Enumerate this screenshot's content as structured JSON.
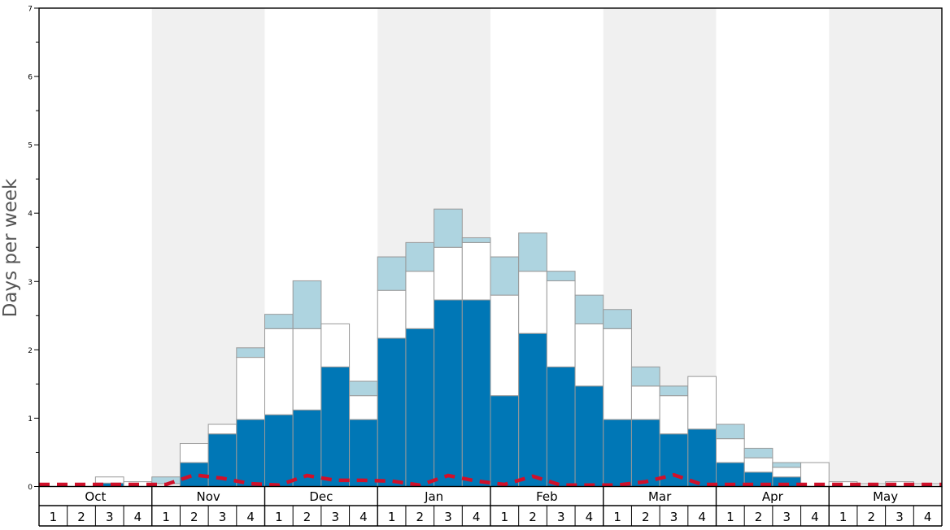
{
  "chart_data": {
    "type": "bar",
    "ylabel": "Days per week",
    "ylim": [
      0,
      7
    ],
    "yticks": [
      0,
      1,
      2,
      3,
      4,
      5,
      6,
      7
    ],
    "y_minor_step": 0.5,
    "months": [
      "Oct",
      "Nov",
      "Dec",
      "Jan",
      "Feb",
      "Mar",
      "Apr",
      "May"
    ],
    "week_labels": [
      "1",
      "2",
      "3",
      "4"
    ],
    "stacked": true,
    "series": [
      {
        "name": "",
        "color": "#0077b6",
        "values": [
          0,
          0,
          0.05,
          0,
          0,
          0.35,
          0.77,
          0.98,
          1.05,
          1.12,
          1.75,
          0.98,
          2.17,
          2.31,
          2.73,
          2.73,
          1.33,
          2.24,
          1.75,
          1.47,
          0.98,
          0.98,
          0.77,
          0.84,
          0.35,
          0.21,
          0.14,
          0,
          0,
          0,
          0,
          0
        ]
      },
      {
        "name": "",
        "color": "#ffffff",
        "values": [
          0,
          0,
          0.09,
          0.07,
          0.04,
          0.28,
          0.14,
          0.91,
          1.26,
          1.19,
          0.63,
          0.35,
          0.7,
          0.84,
          0.77,
          0.84,
          1.47,
          0.91,
          1.26,
          0.91,
          1.33,
          0.49,
          0.56,
          0.77,
          0.35,
          0.21,
          0.14,
          0.35,
          0.07,
          0.04,
          0.07,
          0.04
        ]
      },
      {
        "name": "",
        "color": "#aed4e0",
        "values": [
          0,
          0,
          0,
          0,
          0.1,
          0,
          0,
          0.14,
          0.21,
          0.7,
          0,
          0.21,
          0.49,
          0.42,
          0.56,
          0.07,
          0.56,
          0.56,
          0.14,
          0.42,
          0.28,
          0.28,
          0.14,
          0,
          0.21,
          0.14,
          0.07,
          0,
          0,
          0,
          0,
          0
        ]
      }
    ],
    "line_series": {
      "name": "",
      "color": "#d0102a",
      "style": "dashed",
      "values": [
        0.03,
        0.03,
        0.03,
        0.03,
        0.03,
        0.17,
        0.12,
        0.04,
        0.02,
        0.16,
        0.09,
        0.09,
        0.08,
        0.02,
        0.16,
        0.08,
        0.03,
        0.15,
        0.02,
        0.02,
        0.02,
        0.07,
        0.17,
        0.03,
        0.03,
        0.03,
        0.03,
        0.03,
        0.03,
        0.03,
        0.03,
        0.03
      ]
    },
    "band_colors": [
      "#ffffff",
      "#f0f0f0"
    ]
  }
}
